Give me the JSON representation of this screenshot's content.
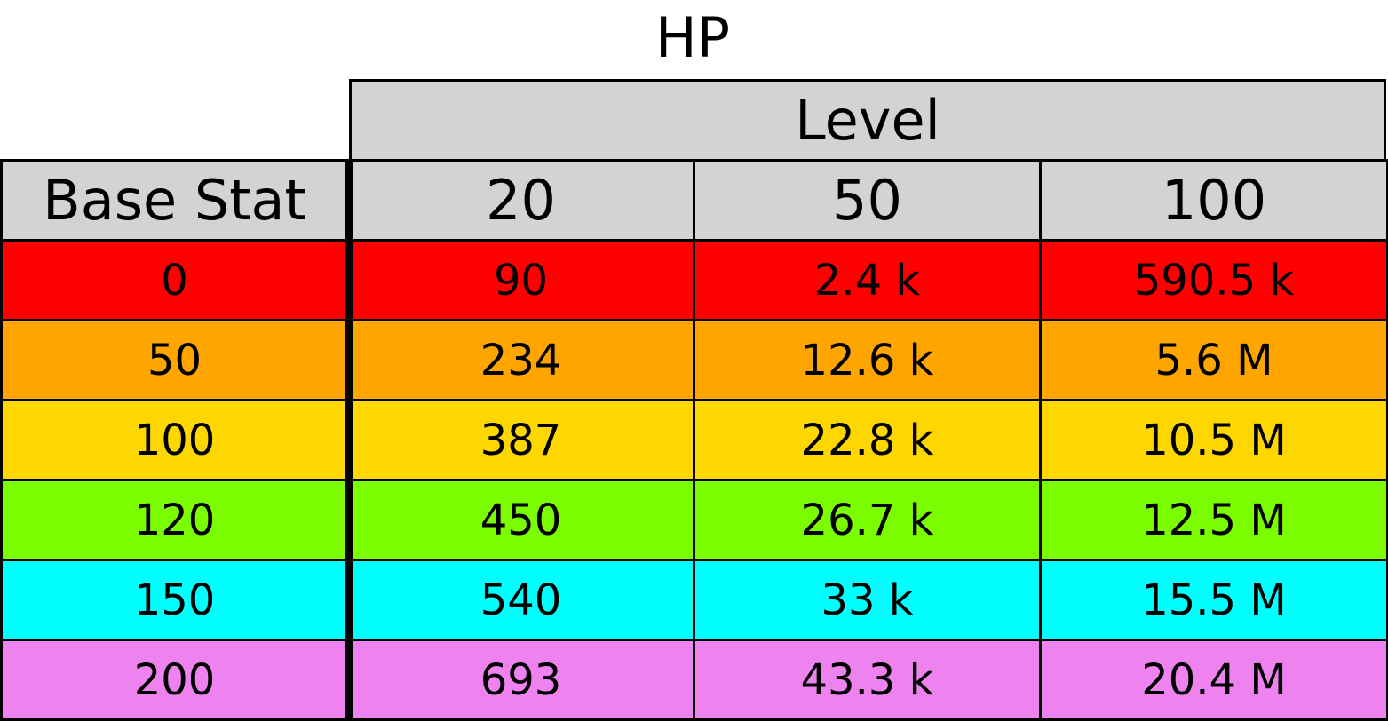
{
  "chart_data": {
    "type": "table",
    "title": "HP",
    "column_group_label": "Level",
    "row_header_label": "Base Stat",
    "columns": [
      "20",
      "50",
      "100"
    ],
    "rows": [
      {
        "base_stat": "0",
        "values": [
          "90",
          "2.4 k",
          "590.5 k"
        ],
        "color": "#ff0000"
      },
      {
        "base_stat": "50",
        "values": [
          "234",
          "12.6 k",
          "5.6 M"
        ],
        "color": "#ffa500"
      },
      {
        "base_stat": "100",
        "values": [
          "387",
          "22.8 k",
          "10.5 M"
        ],
        "color": "#ffd700"
      },
      {
        "base_stat": "120",
        "values": [
          "450",
          "26.7 k",
          "12.5 M"
        ],
        "color": "#7cfc00"
      },
      {
        "base_stat": "150",
        "values": [
          "540",
          "33 k",
          "15.5 M"
        ],
        "color": "#00ffff"
      },
      {
        "base_stat": "200",
        "values": [
          "693",
          "43.3 k",
          "20.4 M"
        ],
        "color": "#ee82ee"
      }
    ],
    "header_color": "#d3d3d3"
  }
}
